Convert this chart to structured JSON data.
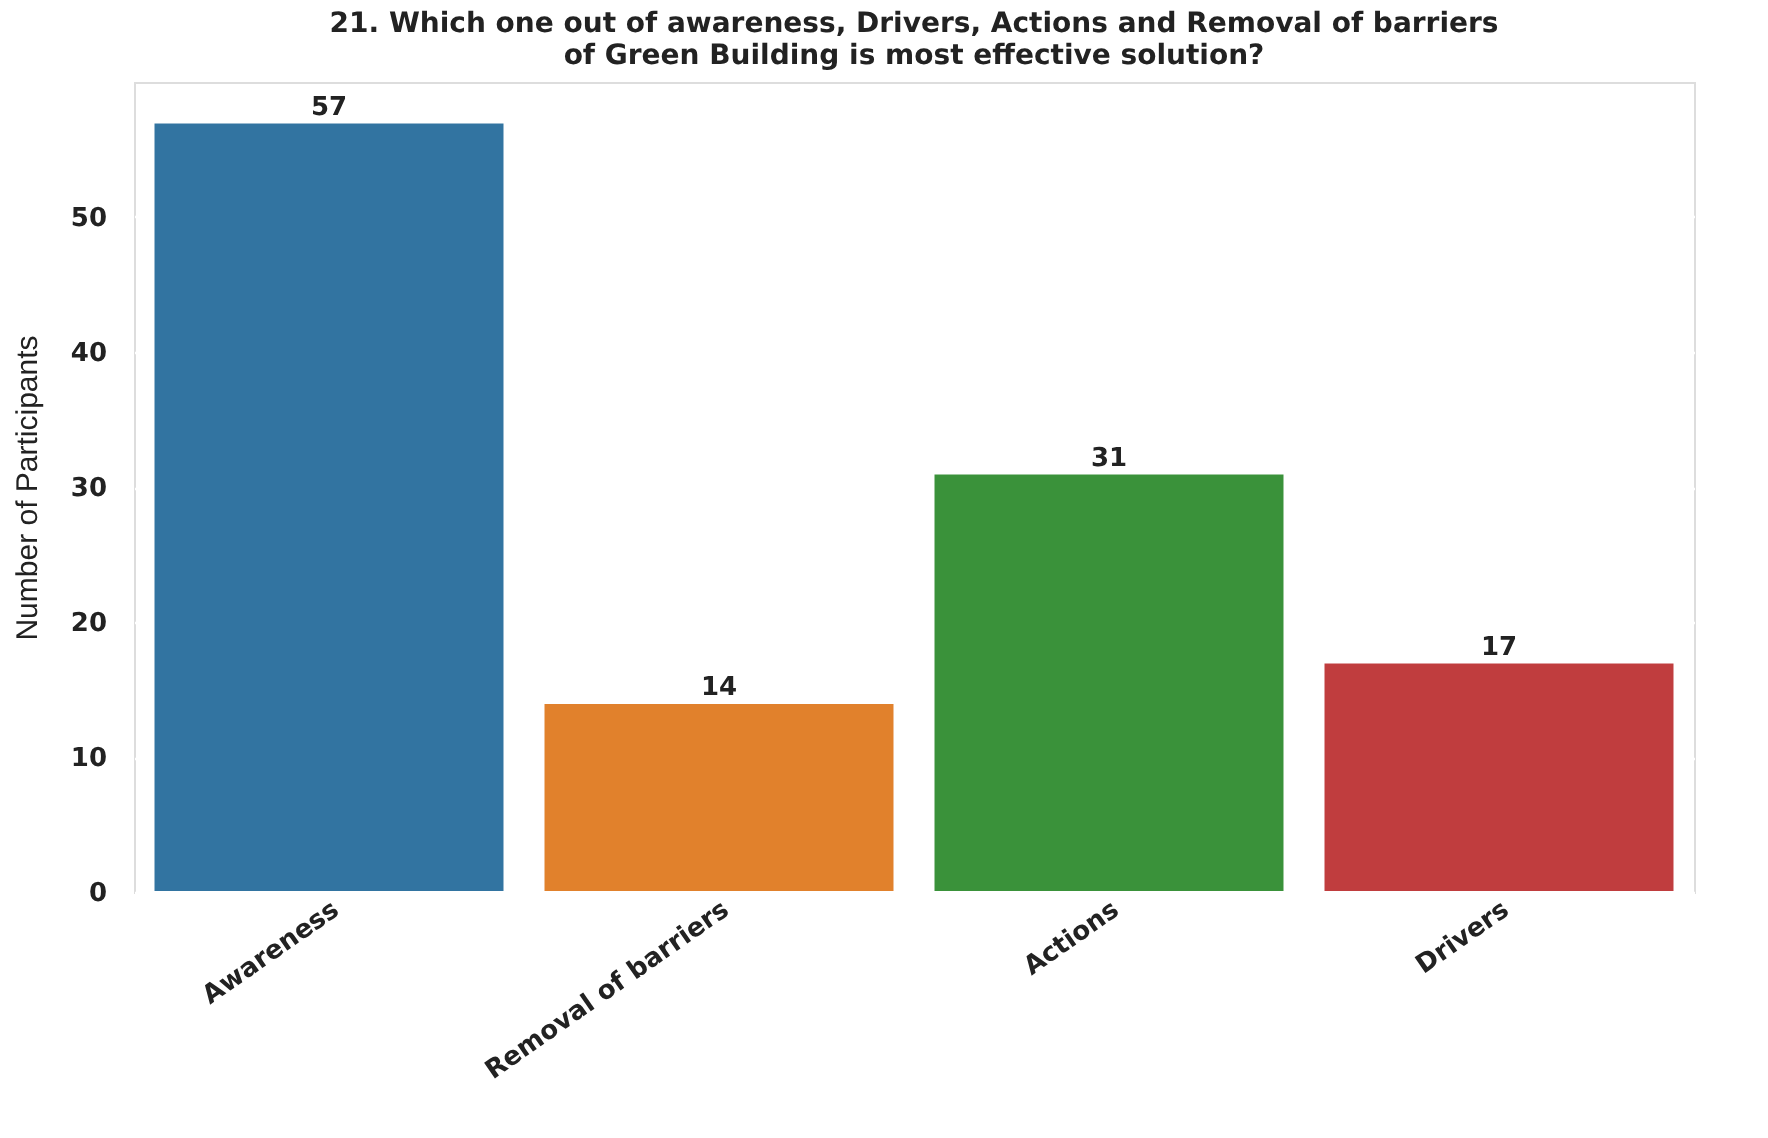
{
  "chart_data": {
    "type": "bar",
    "title": [
      "21. Which one out of awareness, Drivers, Actions and Removal of barriers",
      "of Green Building is most effective solution?"
    ],
    "ylabel": "Number of Participants",
    "categories": [
      "Awareness",
      "Removal of barriers",
      "Actions",
      "Drivers"
    ],
    "values": [
      57,
      14,
      31,
      17
    ],
    "colors": [
      "#3274a1",
      "#e1812c",
      "#3a923a",
      "#c03d3e"
    ],
    "ylim": [
      0,
      60
    ],
    "yticks": [
      0,
      10,
      20,
      30,
      40,
      50
    ],
    "grid": "y",
    "data_labels": true
  }
}
